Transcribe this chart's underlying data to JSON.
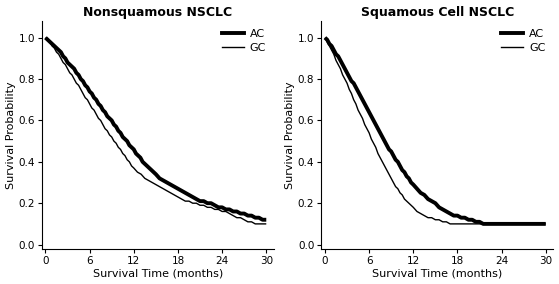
{
  "title_left": "Nonsquamous NSCLC",
  "title_right": "Squamous Cell NSCLC",
  "xlabel": "Survival Time (months)",
  "ylabel": "Survival Probability",
  "xticks": [
    0,
    6,
    12,
    18,
    24,
    30
  ],
  "yticks": [
    0.0,
    0.2,
    0.4,
    0.6,
    0.8,
    1.0
  ],
  "xlim": [
    -0.5,
    31
  ],
  "ylim": [
    -0.02,
    1.08
  ],
  "ac_color": "#000000",
  "gc_color": "#000000",
  "ac_linewidth": 2.8,
  "gc_linewidth": 1.0,
  "title_fontsize": 9,
  "label_fontsize": 8,
  "tick_fontsize": 7.5,
  "legend_fontsize": 8,
  "left_AC_x": [
    0,
    0.3,
    0.6,
    0.9,
    1.2,
    1.5,
    1.8,
    2.1,
    2.4,
    2.7,
    3.0,
    3.3,
    3.6,
    3.9,
    4.2,
    4.5,
    4.8,
    5.1,
    5.4,
    5.7,
    6.0,
    6.3,
    6.6,
    6.9,
    7.2,
    7.5,
    7.8,
    8.1,
    8.4,
    8.7,
    9.0,
    9.3,
    9.6,
    9.9,
    10.2,
    10.5,
    10.8,
    11.1,
    11.4,
    11.7,
    12.0,
    12.3,
    12.6,
    12.9,
    13.2,
    13.5,
    13.8,
    14.1,
    14.4,
    14.7,
    15.0,
    15.5,
    16.0,
    16.5,
    17.0,
    17.5,
    18.0,
    18.5,
    19.0,
    19.5,
    20.0,
    20.5,
    21.0,
    21.5,
    22.0,
    22.5,
    23.0,
    23.5,
    24.0,
    24.5,
    25.0,
    25.5,
    26.0,
    26.5,
    27.0,
    27.5,
    28.0,
    28.5,
    29.0,
    29.5,
    30.0
  ],
  "left_AC_y": [
    1.0,
    0.99,
    0.98,
    0.97,
    0.96,
    0.95,
    0.94,
    0.93,
    0.91,
    0.9,
    0.88,
    0.87,
    0.86,
    0.85,
    0.83,
    0.82,
    0.8,
    0.79,
    0.77,
    0.76,
    0.74,
    0.73,
    0.71,
    0.7,
    0.68,
    0.67,
    0.65,
    0.64,
    0.62,
    0.61,
    0.6,
    0.58,
    0.57,
    0.55,
    0.54,
    0.52,
    0.51,
    0.5,
    0.48,
    0.47,
    0.46,
    0.44,
    0.43,
    0.42,
    0.4,
    0.39,
    0.38,
    0.37,
    0.36,
    0.35,
    0.34,
    0.32,
    0.31,
    0.3,
    0.29,
    0.28,
    0.27,
    0.26,
    0.25,
    0.24,
    0.23,
    0.22,
    0.21,
    0.21,
    0.2,
    0.2,
    0.19,
    0.18,
    0.18,
    0.17,
    0.17,
    0.16,
    0.16,
    0.15,
    0.15,
    0.14,
    0.14,
    0.13,
    0.13,
    0.12,
    0.12
  ],
  "left_GC_x": [
    0,
    0.3,
    0.6,
    0.9,
    1.2,
    1.5,
    1.8,
    2.1,
    2.4,
    2.7,
    3.0,
    3.3,
    3.6,
    3.9,
    4.2,
    4.5,
    4.8,
    5.1,
    5.4,
    5.7,
    6.0,
    6.3,
    6.6,
    6.9,
    7.2,
    7.5,
    7.8,
    8.1,
    8.4,
    8.7,
    9.0,
    9.3,
    9.6,
    9.9,
    10.2,
    10.5,
    10.8,
    11.1,
    11.4,
    11.7,
    12.0,
    12.5,
    13.0,
    13.5,
    14.0,
    14.5,
    15.0,
    15.5,
    16.0,
    16.5,
    17.0,
    17.5,
    18.0,
    18.5,
    19.0,
    19.5,
    20.0,
    20.5,
    21.0,
    21.5,
    22.0,
    22.5,
    23.0,
    23.5,
    24.0,
    24.5,
    25.0,
    25.5,
    26.0,
    26.5,
    27.0,
    27.5,
    28.0,
    28.5,
    29.0,
    29.5,
    30.0
  ],
  "left_GC_y": [
    1.0,
    0.99,
    0.98,
    0.96,
    0.95,
    0.93,
    0.92,
    0.9,
    0.88,
    0.87,
    0.85,
    0.83,
    0.82,
    0.8,
    0.78,
    0.77,
    0.75,
    0.73,
    0.71,
    0.7,
    0.68,
    0.66,
    0.65,
    0.63,
    0.61,
    0.6,
    0.58,
    0.56,
    0.55,
    0.53,
    0.52,
    0.5,
    0.49,
    0.47,
    0.46,
    0.44,
    0.43,
    0.41,
    0.4,
    0.38,
    0.37,
    0.35,
    0.34,
    0.32,
    0.31,
    0.3,
    0.29,
    0.28,
    0.27,
    0.26,
    0.25,
    0.24,
    0.23,
    0.22,
    0.21,
    0.21,
    0.2,
    0.2,
    0.19,
    0.19,
    0.18,
    0.18,
    0.17,
    0.17,
    0.16,
    0.16,
    0.15,
    0.14,
    0.13,
    0.13,
    0.12,
    0.11,
    0.11,
    0.1,
    0.1,
    0.1,
    0.1
  ],
  "right_AC_x": [
    0,
    0.3,
    0.6,
    0.9,
    1.2,
    1.5,
    1.8,
    2.1,
    2.4,
    2.7,
    3.0,
    3.3,
    3.6,
    3.9,
    4.2,
    4.5,
    4.8,
    5.1,
    5.4,
    5.7,
    6.0,
    6.3,
    6.6,
    6.9,
    7.2,
    7.5,
    7.8,
    8.1,
    8.4,
    8.7,
    9.0,
    9.3,
    9.6,
    9.9,
    10.2,
    10.5,
    10.8,
    11.1,
    11.4,
    11.7,
    12.0,
    12.5,
    13.0,
    13.5,
    14.0,
    14.5,
    15.0,
    15.5,
    16.0,
    16.5,
    17.0,
    17.5,
    18.0,
    18.5,
    19.0,
    19.5,
    20.0,
    20.5,
    21.0,
    21.5,
    22.0,
    22.5,
    23.0,
    23.5,
    24.0,
    24.5,
    25.0,
    25.5,
    26.0,
    26.5,
    27.0,
    27.5,
    28.0,
    28.5,
    29.0,
    29.5,
    30.0
  ],
  "right_AC_y": [
    1.0,
    0.99,
    0.97,
    0.96,
    0.94,
    0.92,
    0.91,
    0.89,
    0.87,
    0.85,
    0.83,
    0.81,
    0.79,
    0.78,
    0.76,
    0.74,
    0.72,
    0.7,
    0.68,
    0.66,
    0.64,
    0.62,
    0.6,
    0.58,
    0.56,
    0.54,
    0.52,
    0.5,
    0.48,
    0.46,
    0.45,
    0.43,
    0.41,
    0.4,
    0.38,
    0.36,
    0.35,
    0.33,
    0.32,
    0.3,
    0.29,
    0.27,
    0.25,
    0.24,
    0.22,
    0.21,
    0.2,
    0.18,
    0.17,
    0.16,
    0.15,
    0.14,
    0.14,
    0.13,
    0.13,
    0.12,
    0.12,
    0.11,
    0.11,
    0.1,
    0.1,
    0.1,
    0.1,
    0.1,
    0.1,
    0.1,
    0.1,
    0.1,
    0.1,
    0.1,
    0.1,
    0.1,
    0.1,
    0.1,
    0.1,
    0.1,
    0.1
  ],
  "right_GC_x": [
    0,
    0.3,
    0.6,
    0.9,
    1.2,
    1.5,
    1.8,
    2.1,
    2.4,
    2.7,
    3.0,
    3.3,
    3.6,
    3.9,
    4.2,
    4.5,
    4.8,
    5.1,
    5.4,
    5.7,
    6.0,
    6.3,
    6.6,
    6.9,
    7.2,
    7.5,
    7.8,
    8.1,
    8.4,
    8.7,
    9.0,
    9.3,
    9.6,
    9.9,
    10.2,
    10.5,
    10.8,
    11.1,
    11.4,
    11.7,
    12.0,
    12.5,
    13.0,
    13.5,
    14.0,
    14.5,
    15.0,
    15.5,
    16.0,
    16.5,
    17.0,
    17.5,
    18.0,
    18.5,
    19.0,
    19.5,
    20.0,
    20.5,
    21.0,
    21.5,
    22.0,
    22.5,
    23.0,
    23.5,
    24.0,
    24.5,
    25.0,
    25.5,
    26.0,
    26.5,
    27.0,
    27.5,
    28.0,
    28.5,
    29.0,
    29.5,
    30.0
  ],
  "right_GC_y": [
    1.0,
    0.98,
    0.96,
    0.94,
    0.92,
    0.89,
    0.87,
    0.85,
    0.82,
    0.8,
    0.78,
    0.75,
    0.73,
    0.7,
    0.68,
    0.65,
    0.63,
    0.61,
    0.58,
    0.56,
    0.54,
    0.51,
    0.49,
    0.47,
    0.44,
    0.42,
    0.4,
    0.38,
    0.36,
    0.34,
    0.32,
    0.3,
    0.28,
    0.27,
    0.25,
    0.24,
    0.22,
    0.21,
    0.2,
    0.19,
    0.18,
    0.16,
    0.15,
    0.14,
    0.13,
    0.13,
    0.12,
    0.12,
    0.11,
    0.11,
    0.1,
    0.1,
    0.1,
    0.1,
    0.1,
    0.1,
    0.1,
    0.1,
    0.1,
    0.1,
    0.1,
    0.1,
    0.1,
    0.1,
    0.1,
    0.1,
    0.1,
    0.1,
    0.1,
    0.1,
    0.1,
    0.1,
    0.1,
    0.1,
    0.1,
    0.1,
    0.1
  ]
}
